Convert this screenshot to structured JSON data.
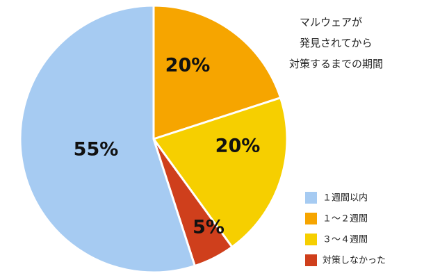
{
  "chart_data": {
    "type": "pie",
    "title_lines": [
      "マルウェアが",
      "発見されてから",
      "対策するまでの期間"
    ],
    "slices": [
      {
        "name": "1週間以内",
        "legend_label": "１週間以内",
        "value": 55,
        "label": "55%",
        "color": "#a6cbf2"
      },
      {
        "name": "1～2週間",
        "legend_label": "１～２週間",
        "value": 20,
        "label": "20%",
        "color": "#f6a500"
      },
      {
        "name": "3～4週間",
        "legend_label": "３～４週間",
        "value": 20,
        "label": "20%",
        "color": "#f6cf00"
      },
      {
        "name": "対策しなかった",
        "legend_label": "対策しなかった",
        "value": 5,
        "label": "5%",
        "color": "#cf3f1c"
      }
    ],
    "legend_position": "bottom-right"
  }
}
